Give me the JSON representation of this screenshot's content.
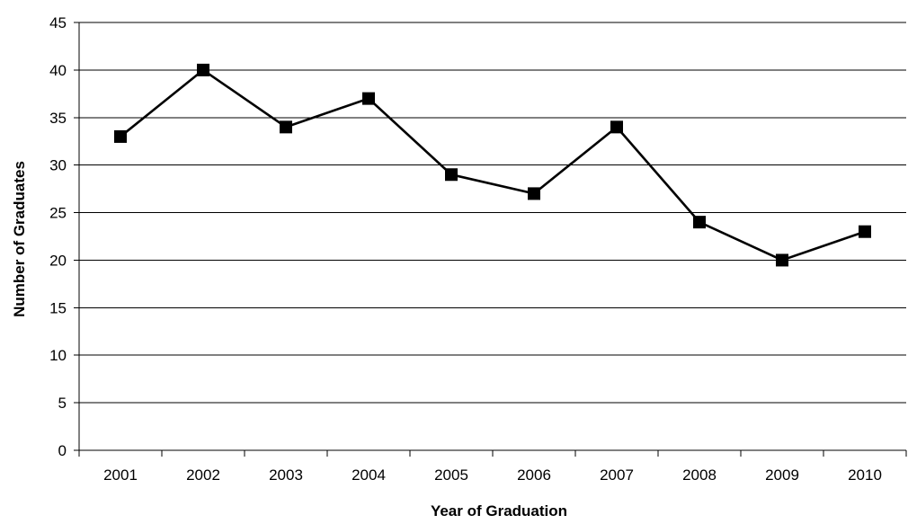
{
  "chart_data": {
    "type": "line",
    "title": "",
    "xlabel": "Year of Graduation",
    "ylabel": "Number of Graduates",
    "categories": [
      "2001",
      "2002",
      "2003",
      "2004",
      "2005",
      "2006",
      "2007",
      "2008",
      "2009",
      "2010"
    ],
    "series": [
      {
        "values": [
          33,
          40,
          34,
          37,
          29,
          27,
          34,
          24,
          20,
          23
        ],
        "color": "#000000",
        "marker": "square"
      }
    ],
    "ylim": [
      0,
      45
    ],
    "yticks": [
      0,
      5,
      10,
      15,
      20,
      25,
      30,
      35,
      40,
      45
    ],
    "grid": true,
    "legend": "none"
  }
}
